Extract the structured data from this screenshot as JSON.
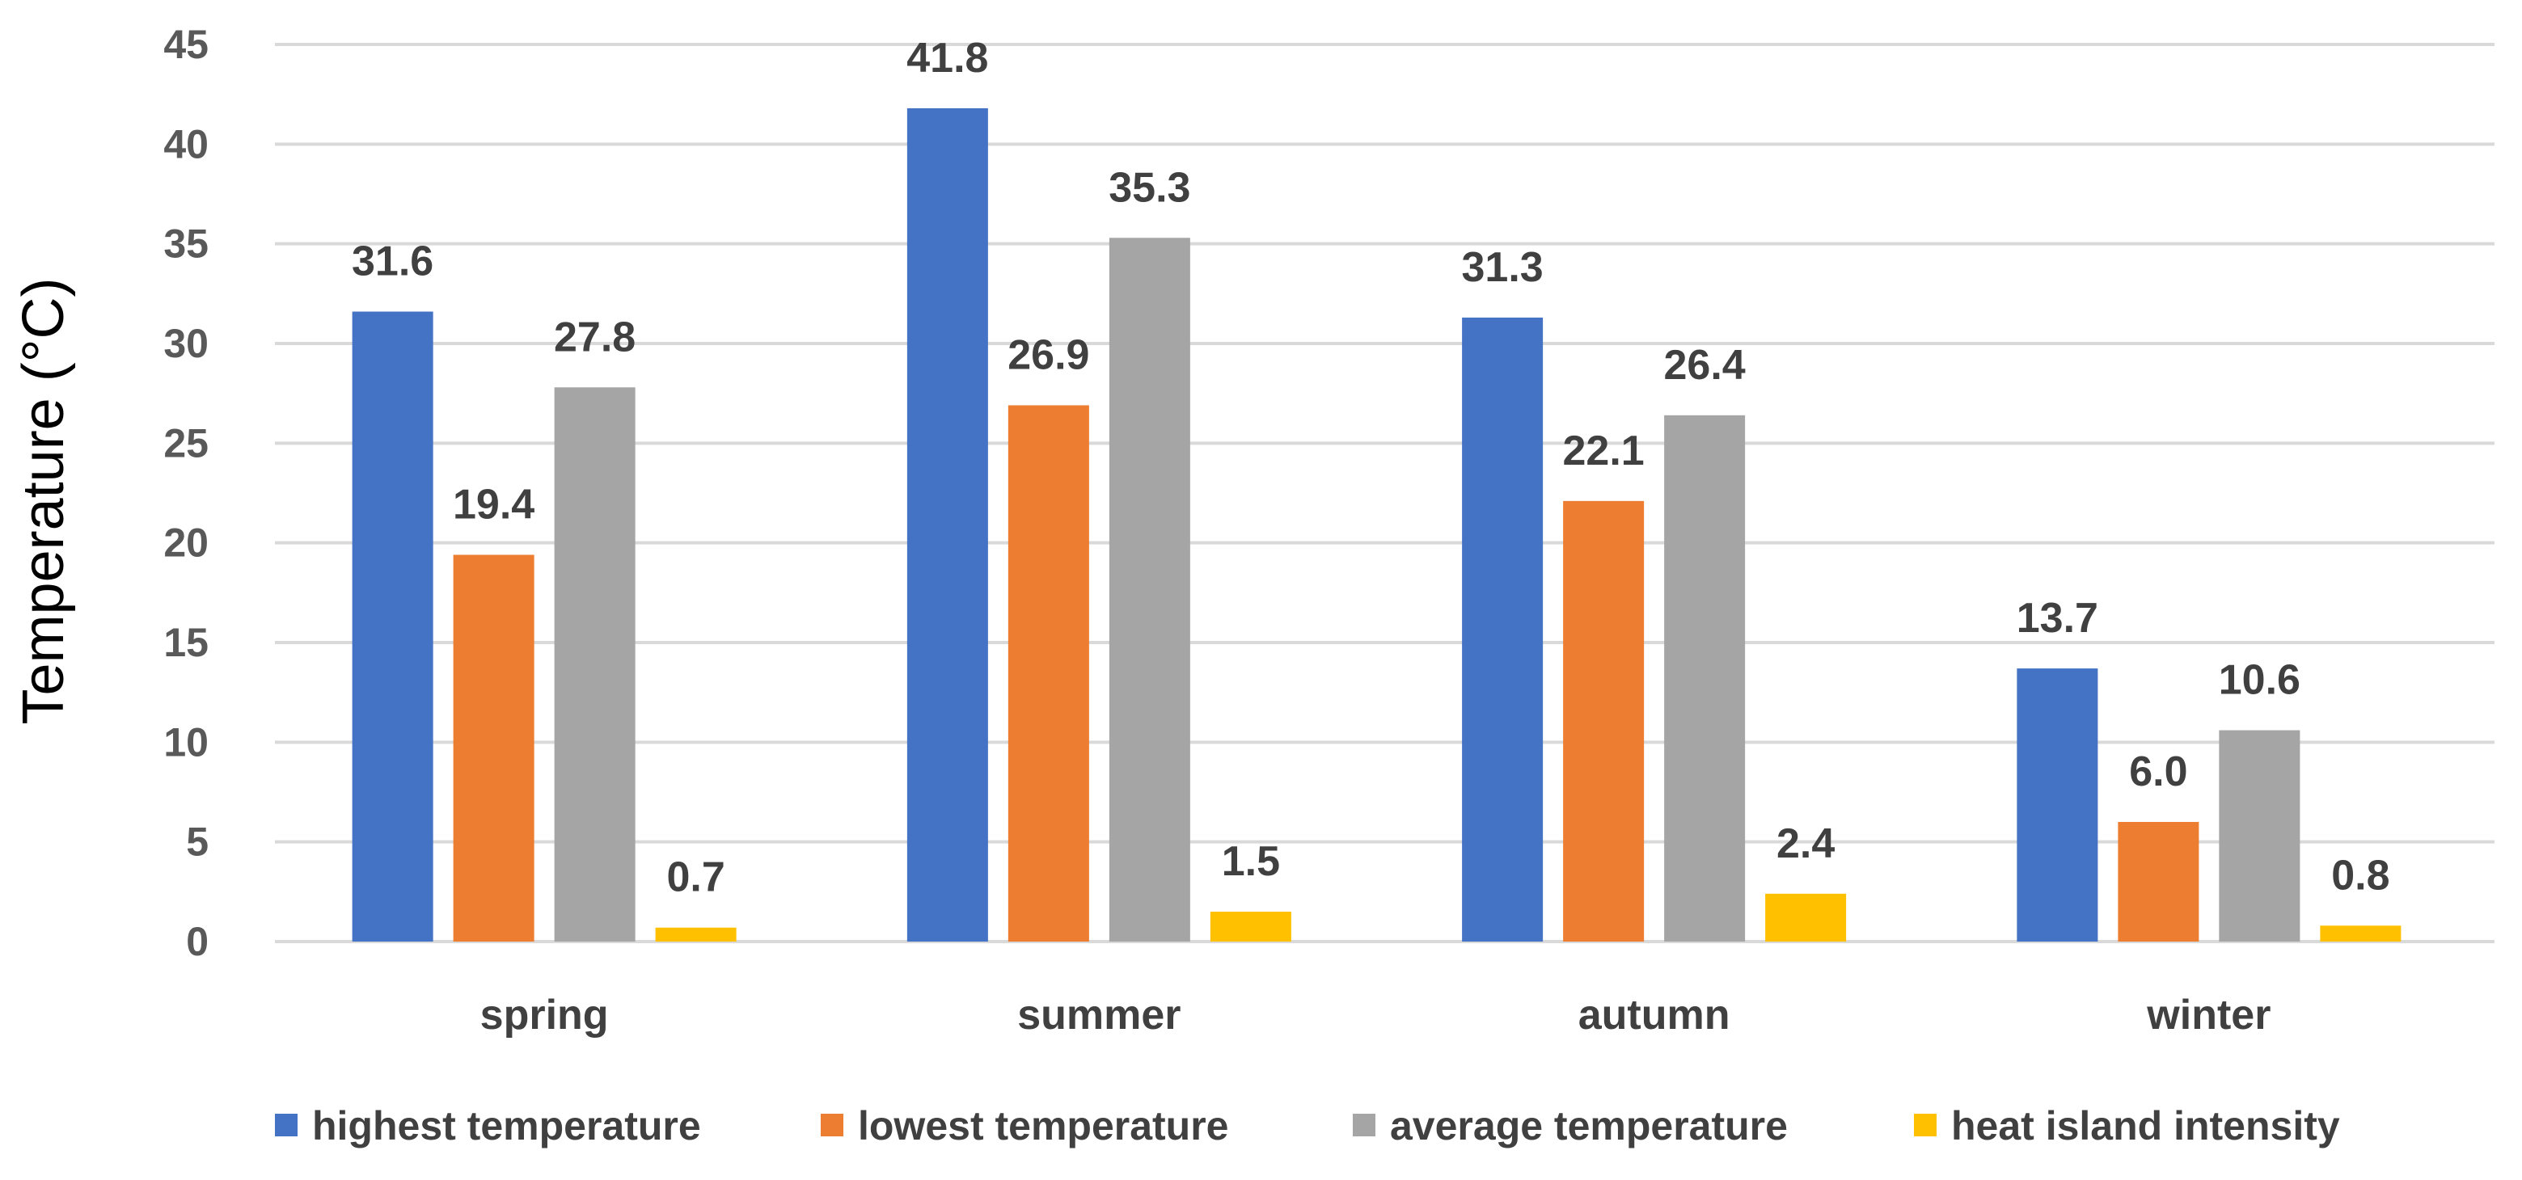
{
  "chart_data": {
    "type": "bar",
    "title": "",
    "xlabel": "",
    "ylabel": "Temperature (°C)",
    "ylim": [
      0,
      45
    ],
    "yticks": [
      0,
      5,
      10,
      15,
      20,
      25,
      30,
      35,
      40,
      45
    ],
    "grid": true,
    "legend_position": "bottom",
    "categories": [
      "spring",
      "summer",
      "autumn",
      "winter"
    ],
    "series": [
      {
        "name": "highest temperature",
        "color": "#4472C4",
        "values": [
          31.6,
          41.8,
          31.3,
          13.7
        ],
        "labels": [
          "31.6",
          "41.8",
          "31.3",
          "13.7"
        ]
      },
      {
        "name": "lowest temperature",
        "color": "#ED7D31",
        "values": [
          19.4,
          26.9,
          22.1,
          6.0
        ],
        "labels": [
          "19.4",
          "26.9",
          "22.1",
          "6.0"
        ]
      },
      {
        "name": "average temperature",
        "color": "#A5A5A5",
        "values": [
          27.8,
          35.3,
          26.4,
          10.6
        ],
        "labels": [
          "27.8",
          "35.3",
          "26.4",
          "10.6"
        ]
      },
      {
        "name": "heat island intensity",
        "color": "#FFC000",
        "values": [
          0.7,
          1.5,
          2.4,
          0.8
        ],
        "labels": [
          "0.7",
          "1.5",
          "2.4",
          "0.8"
        ]
      }
    ]
  }
}
